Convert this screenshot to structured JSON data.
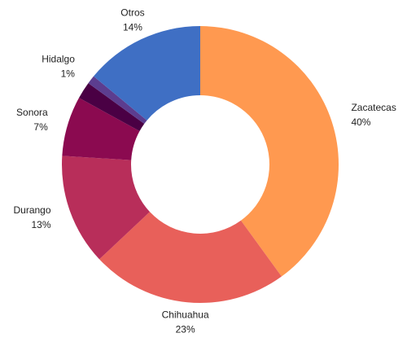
{
  "chart_data": {
    "type": "donut",
    "categories": [
      "Zacatecas",
      "Chihuahua",
      "Durango",
      "Sonora",
      null,
      "Hidalgo",
      "Otros"
    ],
    "values": [
      40,
      23,
      13,
      7,
      2,
      1,
      14
    ],
    "value_labels": [
      "40%",
      "23%",
      "13%",
      "7%",
      null,
      "1%",
      "14%"
    ],
    "colors": [
      "#ff9950",
      "#e8605a",
      "#b82e5a",
      "#8b0a50",
      "#4a0044",
      "#5c3d8f",
      "#3f6fc4"
    ]
  }
}
